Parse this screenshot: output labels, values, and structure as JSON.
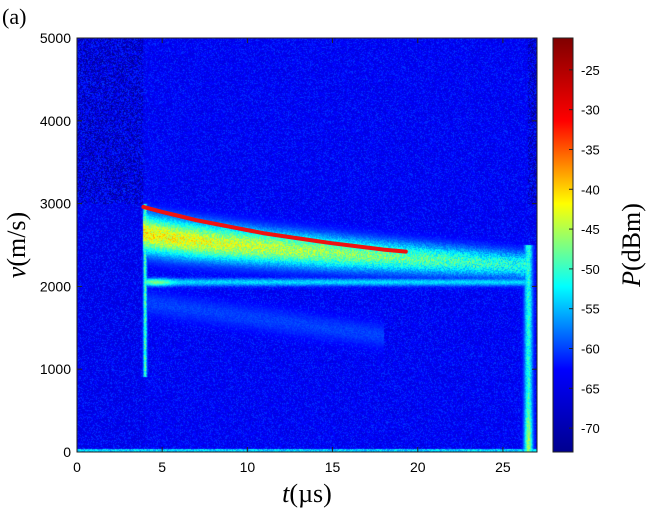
{
  "panel_label": "(a)",
  "chart_data": {
    "type": "heatmap",
    "title": "",
    "xlabel_var": "t",
    "xlabel_unit": "(µs)",
    "ylabel_var": "v",
    "ylabel_unit": "(m/s)",
    "colorbar_label_var": "P",
    "colorbar_label_unit": "(dBm)",
    "xlim": [
      0,
      27
    ],
    "ylim": [
      0,
      5000
    ],
    "xticks": [
      0,
      5,
      10,
      15,
      20,
      25
    ],
    "yticks": [
      0,
      1000,
      2000,
      3000,
      4000,
      5000
    ],
    "clim": [
      -73,
      -21
    ],
    "cticks": [
      -25,
      -30,
      -35,
      -40,
      -45,
      -50,
      -55,
      -60,
      -65,
      -70
    ],
    "colormap": "jet",
    "colormap_stops": [
      "#00008f",
      "#0000ff",
      "#00ffff",
      "#ffff00",
      "#ff0000",
      "#800000"
    ],
    "background_level_dbm": -68,
    "features": [
      {
        "name": "decaying velocity band",
        "t_start": 3.9,
        "t_end": 26.5,
        "v_center_start": 2650,
        "v_center_end": 2250,
        "peak_dbm": -40
      },
      {
        "name": "constant 2050 m/s line",
        "t_start": 4.0,
        "t_end": 26.5,
        "v": 2050,
        "peak_dbm": -50
      },
      {
        "name": "onset transient",
        "t": 4.0,
        "v_min": 900,
        "v_max": 3000,
        "peak_dbm": -45
      },
      {
        "name": "end transient",
        "t": 26.5,
        "v_min": 0,
        "v_max": 2500,
        "peak_dbm": -45
      },
      {
        "name": "faint lower branch",
        "t_start": 4.0,
        "t_end": 18.0,
        "v_start": 1800,
        "v_end": 1400,
        "peak_dbm": -62
      }
    ],
    "fit_curve": {
      "color": "#ee1111",
      "x": [
        3.9,
        5.0,
        6.0,
        7.0,
        8.0,
        9.0,
        10.0,
        11.0,
        12.0,
        13.0,
        14.0,
        15.0,
        16.0,
        17.0,
        18.0,
        19.3
      ],
      "y": [
        2960,
        2900,
        2850,
        2800,
        2760,
        2720,
        2680,
        2640,
        2610,
        2580,
        2550,
        2520,
        2495,
        2470,
        2445,
        2420
      ]
    },
    "grid": false,
    "legend": "none"
  }
}
